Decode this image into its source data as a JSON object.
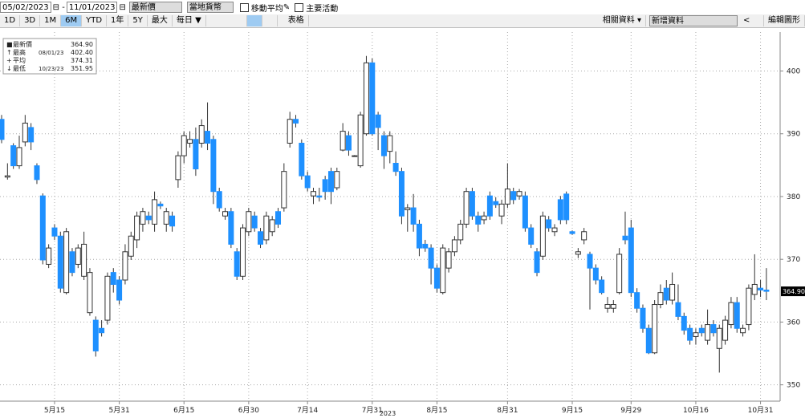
{
  "toolbar": {
    "start": "05/02/2023",
    "end": "11/01/2023",
    "field": "最新價",
    "currency": "當地貨幣",
    "ma": "移動平均",
    "events": "主要活動",
    "periods": [
      "1D",
      "3D",
      "1M",
      "6M",
      "YTD",
      "1年",
      "5Y",
      "最大"
    ],
    "selected": 3,
    "freq": "每日 ▼",
    "table": "表格",
    "related": "相關資料 ▾",
    "add": "新增資料",
    "edit": "編輯圖形"
  },
  "chart_data": {
    "type": "candlestick",
    "up_color": "#ffffff",
    "down_color": "#1e90ff",
    "legend": [
      {
        "label": "最新價",
        "value_label": "364.90"
      },
      {
        "label": "最高",
        "date": "08/01/23",
        "value_label": "402.40"
      },
      {
        "label": "平均",
        "value_label": "374.31"
      },
      {
        "label": "最低",
        "date": "10/23/23",
        "value_label": "351.95"
      }
    ],
    "latest": {
      "value": 364.9,
      "value_label": "364.90"
    },
    "x_label": "2023",
    "ylim": [
      347.4,
      406.2
    ],
    "yticks": [
      350,
      360,
      370,
      380,
      390,
      400
    ],
    "grid": true,
    "xticks": [
      {
        "value": 9,
        "label": "5月15"
      },
      {
        "value": 20,
        "label": "5月31"
      },
      {
        "value": 31,
        "label": "6月15"
      },
      {
        "value": 42,
        "label": "6月30"
      },
      {
        "value": 52,
        "label": "7月14"
      },
      {
        "value": 63,
        "label": "7月31"
      },
      {
        "value": 74,
        "label": "8月15"
      },
      {
        "value": 86,
        "label": "8月31"
      },
      {
        "value": 97,
        "label": "9月15"
      },
      {
        "value": 107,
        "label": "9月29"
      },
      {
        "value": 118,
        "label": "10月16"
      },
      {
        "value": 129,
        "label": "10月31"
      }
    ],
    "ohlc": [
      [
        392.3,
        393,
        388.5,
        389.1
      ],
      [
        383.1,
        385.3,
        382.7,
        383.3
      ],
      [
        388.1,
        388.5,
        384.4,
        384.9
      ],
      [
        384.9,
        389.7,
        384.4,
        387.8
      ],
      [
        388.7,
        393,
        388,
        391.7
      ],
      [
        391,
        391.7,
        387.4,
        388.7
      ],
      [
        384.9,
        385.3,
        382,
        382.7
      ],
      [
        380.1,
        380.5,
        369.2,
        369.9
      ],
      [
        369.2,
        372.4,
        368.6,
        371.8
      ],
      [
        375,
        375.6,
        373.1,
        373.7
      ],
      [
        373.7,
        374.4,
        364.7,
        365.4
      ],
      [
        364.7,
        375,
        364.4,
        374.4
      ],
      [
        371.2,
        371.8,
        367.3,
        367.9
      ],
      [
        369.2,
        372.4,
        368.6,
        371.8
      ],
      [
        367.3,
        374.4,
        366.7,
        372.4
      ],
      [
        361.5,
        368.6,
        361,
        367.9
      ],
      [
        360.3,
        360.9,
        354.5,
        355.4
      ],
      [
        359,
        360.3,
        357.7,
        358.3
      ],
      [
        360.3,
        367.9,
        359.6,
        367.3
      ],
      [
        367.9,
        368.6,
        364.7,
        366
      ],
      [
        366.7,
        367.3,
        362.8,
        363.5
      ],
      [
        366.7,
        372.4,
        366,
        371.2
      ],
      [
        370.5,
        374.4,
        369.9,
        373.7
      ],
      [
        373.1,
        377.6,
        371.8,
        376.9
      ],
      [
        375.6,
        378.2,
        374.4,
        377.6
      ],
      [
        376.9,
        377.6,
        375.6,
        376.3
      ],
      [
        375.6,
        380.8,
        374.4,
        379.5
      ],
      [
        378.8,
        379.2,
        378,
        378.5
      ],
      [
        375.6,
        378.2,
        374.4,
        377.6
      ],
      [
        376.9,
        377.6,
        374.4,
        375.3
      ],
      [
        382.7,
        387.2,
        381.4,
        386.5
      ],
      [
        386.5,
        390.4,
        385.3,
        389.7
      ],
      [
        388.5,
        390.4,
        387.8,
        389.1
      ],
      [
        389.1,
        391,
        383.3,
        384.4
      ],
      [
        388.5,
        392.3,
        387.8,
        391.3
      ],
      [
        390.4,
        395,
        387.4,
        388.5
      ],
      [
        389.1,
        389.7,
        378.8,
        380.8
      ],
      [
        380.8,
        381.4,
        377.6,
        378.2
      ],
      [
        376.9,
        378.2,
        376.3,
        377.6
      ],
      [
        377.6,
        378.2,
        371.8,
        372.4
      ],
      [
        371.2,
        371.8,
        366.7,
        367.3
      ],
      [
        367.3,
        375.6,
        366.7,
        375
      ],
      [
        374.4,
        378.2,
        373.7,
        377.6
      ],
      [
        376.9,
        377.6,
        374.4,
        375
      ],
      [
        374.4,
        375,
        371.8,
        372.4
      ],
      [
        373.1,
        377.6,
        372.4,
        376.9
      ],
      [
        374.4,
        376.9,
        373.7,
        376.3
      ],
      [
        377.6,
        378.2,
        375,
        375.6
      ],
      [
        378.2,
        385.3,
        377.6,
        384
      ],
      [
        388.5,
        393.5,
        387.8,
        392.3
      ],
      [
        392.3,
        393,
        391,
        391.7
      ],
      [
        388.5,
        389.1,
        382.7,
        383.3
      ],
      [
        383.3,
        384,
        380.8,
        381.4
      ],
      [
        380.1,
        381.4,
        378.8,
        380.8
      ],
      [
        380.1,
        381.4,
        379.2,
        379.9
      ],
      [
        382.7,
        383.3,
        379.5,
        380.8
      ],
      [
        384,
        384.6,
        378.8,
        380.8
      ],
      [
        381.4,
        384.6,
        381,
        384
      ],
      [
        387.4,
        391.7,
        387.2,
        390.4
      ],
      [
        389.7,
        390.4,
        386.5,
        387.4
      ],
      [
        386.4,
        386.6,
        386.4,
        386.5
      ],
      [
        384.9,
        393.5,
        384.6,
        393
      ],
      [
        390,
        402.4,
        389.7,
        401.3
      ],
      [
        401.3,
        402,
        389.7,
        390
      ],
      [
        393,
        393.5,
        387.4,
        391
      ],
      [
        389.7,
        390.4,
        384.4,
        386.5
      ],
      [
        387.2,
        390.4,
        385.3,
        389.7
      ],
      [
        385.3,
        387.2,
        383.3,
        384
      ],
      [
        384,
        384.6,
        375.6,
        376.9
      ],
      [
        377.9,
        378.8,
        374.4,
        378.2
      ],
      [
        378.2,
        380.4,
        374.4,
        375.6
      ],
      [
        375.6,
        376.3,
        370.5,
        371.8
      ],
      [
        372.4,
        373.1,
        371.2,
        371.8
      ],
      [
        371.8,
        372.4,
        366,
        368.6
      ],
      [
        368.6,
        369.2,
        364.7,
        365.4
      ],
      [
        364.7,
        372.4,
        364.4,
        371.8
      ],
      [
        368.6,
        371.8,
        367.9,
        371.2
      ],
      [
        371.2,
        373.7,
        370.5,
        373.1
      ],
      [
        373.1,
        376.3,
        372.4,
        375.6
      ],
      [
        375.6,
        381.4,
        375,
        380.8
      ],
      [
        380.8,
        381.4,
        376.3,
        376.9
      ],
      [
        376.9,
        377.6,
        374.4,
        375.6
      ],
      [
        376.3,
        377.6,
        375.6,
        376.9
      ],
      [
        380.1,
        380.8,
        376.3,
        376.9
      ],
      [
        379.2,
        379.9,
        378.2,
        378.7
      ],
      [
        376.9,
        379.5,
        375.6,
        378.8
      ],
      [
        378.8,
        385.3,
        378.2,
        381.2
      ],
      [
        380.8,
        381.4,
        378.8,
        379.5
      ],
      [
        380.1,
        381.2,
        379.5,
        380.8
      ],
      [
        380.1,
        380.8,
        374.4,
        375
      ],
      [
        375,
        375.6,
        371.8,
        372.4
      ],
      [
        371.2,
        371.8,
        367.3,
        367.9
      ],
      [
        370.5,
        377.6,
        369.9,
        376.9
      ],
      [
        376.3,
        376.9,
        374.4,
        375
      ],
      [
        374.4,
        375.6,
        373.7,
        375
      ],
      [
        379.5,
        380.1,
        375.6,
        376.3
      ],
      [
        380.4,
        380.8,
        375.6,
        376.3
      ],
      [
        374.4,
        374.6,
        373.9,
        374.1
      ],
      [
        370.8,
        371.8,
        370.2,
        371.2
      ],
      [
        373.1,
        375,
        372.4,
        374.4
      ],
      [
        370.8,
        371.2,
        362,
        368.6
      ],
      [
        368.6,
        369.2,
        366,
        366.7
      ],
      [
        366.7,
        367.3,
        364.4,
        364.7
      ],
      [
        362.2,
        364,
        361.5,
        362.8
      ],
      [
        362.2,
        363.5,
        361.5,
        362.8
      ],
      [
        364.7,
        371.8,
        364.4,
        370.8
      ],
      [
        373.7,
        377.6,
        372.4,
        373.1
      ],
      [
        375,
        376.3,
        364,
        364.7
      ],
      [
        364.7,
        365.4,
        361.5,
        362.2
      ],
      [
        362.2,
        362.8,
        358.3,
        359
      ],
      [
        359,
        359.6,
        354.9,
        355.1
      ],
      [
        355.1,
        363.5,
        354.9,
        362.8
      ],
      [
        362.8,
        366,
        362.2,
        364.7
      ],
      [
        365.4,
        366.7,
        362.8,
        363.5
      ],
      [
        363.5,
        367.9,
        362.8,
        366
      ],
      [
        363.1,
        366,
        360.3,
        360.9
      ],
      [
        360.9,
        361.5,
        358,
        358.7
      ],
      [
        359,
        359.6,
        356.4,
        357.1
      ],
      [
        357.7,
        359,
        356.4,
        358.3
      ],
      [
        359,
        359.6,
        357.7,
        358.3
      ],
      [
        357.1,
        362,
        356.4,
        359.6
      ],
      [
        359.6,
        360.3,
        357.7,
        358.3
      ],
      [
        355.8,
        359.6,
        351.95,
        359
      ],
      [
        357.1,
        361,
        356.4,
        360.3
      ],
      [
        359.6,
        364,
        359,
        363.1
      ],
      [
        363.1,
        364,
        358.3,
        359
      ],
      [
        358.3,
        359.6,
        357.7,
        359
      ],
      [
        359.6,
        366,
        358.7,
        365.4
      ],
      [
        364.4,
        370.8,
        363.5,
        366
      ],
      [
        365.4,
        366.7,
        364,
        365.1
      ],
      [
        365.1,
        368.6,
        363.5,
        364.9
      ]
    ]
  }
}
